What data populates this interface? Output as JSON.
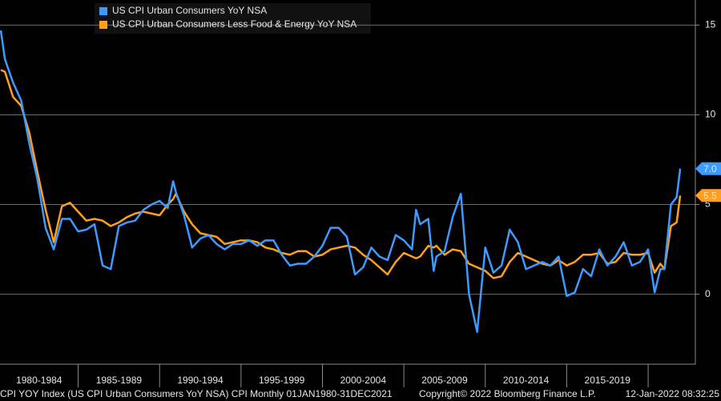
{
  "chart_data": {
    "type": "line",
    "x": [
      1980.25,
      1980.5,
      1981,
      1981.5,
      1982,
      1982.5,
      1983,
      1983.5,
      1984,
      1984.5,
      1985,
      1985.5,
      1986,
      1986.5,
      1987,
      1987.5,
      1988,
      1988.5,
      1989,
      1989.5,
      1990,
      1990.5,
      1990.83,
      1991,
      1991.5,
      1992,
      1992.5,
      1993,
      1993.5,
      1994,
      1994.5,
      1995,
      1995.5,
      1996,
      1996.5,
      1997,
      1997.5,
      1998,
      1998.5,
      1999,
      1999.5,
      2000,
      2000.5,
      2001,
      2001.5,
      2002,
      2002.5,
      2003,
      2003.5,
      2004,
      2004.5,
      2005,
      2005.5,
      2005.75,
      2006,
      2006.5,
      2006.83,
      2007,
      2007.5,
      2008,
      2008.5,
      2009,
      2009.5,
      2010,
      2010.5,
      2011,
      2011.5,
      2012,
      2012.5,
      2013,
      2013.5,
      2014,
      2014.5,
      2015,
      2015.5,
      2016,
      2016.5,
      2017,
      2017.5,
      2018,
      2018.5,
      2019,
      2019.5,
      2020,
      2020.4,
      2020.75,
      2021,
      2021.4,
      2021.75,
      2021.97
    ],
    "series": [
      {
        "name": "US CPI Urban Consumers YoY NSA",
        "color": "#3d9bff",
        "last_label": "7.0",
        "values": [
          14.7,
          13.1,
          11.8,
          10.8,
          8.4,
          6.4,
          3.7,
          2.5,
          4.2,
          4.2,
          3.5,
          3.6,
          3.9,
          1.6,
          1.4,
          3.8,
          4.0,
          4.1,
          4.7,
          5.0,
          5.2,
          4.8,
          6.3,
          5.7,
          4.4,
          2.6,
          3.1,
          3.3,
          2.8,
          2.5,
          2.8,
          2.8,
          3.0,
          2.7,
          3.0,
          3.0,
          2.2,
          1.6,
          1.7,
          1.7,
          2.1,
          2.7,
          3.7,
          3.7,
          3.2,
          1.1,
          1.5,
          2.6,
          2.1,
          1.9,
          3.3,
          3.0,
          2.5,
          4.7,
          3.9,
          4.2,
          1.3,
          2.1,
          2.4,
          4.3,
          5.6,
          0.0,
          -2.1,
          2.6,
          1.2,
          1.6,
          3.6,
          2.9,
          1.4,
          1.6,
          1.8,
          1.6,
          2.1,
          -0.1,
          0.1,
          1.4,
          1.0,
          2.5,
          1.6,
          2.1,
          2.9,
          1.6,
          1.8,
          2.5,
          0.1,
          1.4,
          1.4,
          5.0,
          5.4,
          7.0
        ]
      },
      {
        "name": "US CPI Urban Consumers Less Food & Energy YoY NSA",
        "color": "#ff9f1c",
        "last_label": "5.5",
        "values": [
          12.5,
          12.4,
          11.0,
          10.5,
          9.0,
          6.8,
          4.7,
          2.9,
          4.9,
          5.1,
          4.6,
          4.1,
          4.2,
          4.1,
          3.8,
          4.0,
          4.3,
          4.5,
          4.6,
          4.5,
          4.4,
          5.0,
          5.3,
          5.6,
          4.6,
          3.9,
          3.4,
          3.3,
          3.2,
          2.8,
          2.9,
          3.0,
          3.0,
          2.9,
          2.6,
          2.5,
          2.3,
          2.2,
          2.4,
          2.4,
          2.1,
          2.2,
          2.5,
          2.6,
          2.7,
          2.6,
          2.2,
          1.9,
          1.5,
          1.1,
          1.8,
          2.3,
          2.1,
          2.0,
          2.1,
          2.7,
          2.6,
          2.7,
          2.2,
          2.5,
          2.4,
          1.7,
          1.5,
          1.3,
          0.9,
          1.0,
          1.8,
          2.3,
          2.1,
          1.9,
          1.7,
          1.6,
          1.9,
          1.6,
          1.8,
          2.2,
          2.2,
          2.3,
          1.7,
          1.8,
          2.3,
          2.2,
          2.2,
          2.3,
          1.2,
          1.7,
          1.4,
          3.8,
          4.0,
          5.5
        ]
      }
    ],
    "categories": [
      "1980-1984",
      "1985-1989",
      "1990-1994",
      "1995-1999",
      "2000-2004",
      "2005-2009",
      "2010-2014",
      "2015-2019"
    ],
    "xticks": [
      1985,
      1990,
      1995,
      2000,
      2005,
      2010,
      2015,
      2020
    ],
    "xlim": [
      1980.2,
      2022.9
    ],
    "ylim": [
      -3.9,
      16.4
    ],
    "yticks": [
      0,
      5,
      10,
      15
    ],
    "grid": true,
    "footer": [
      "CPI YOY Index (US CPI Urban Consumers YoY NSA) CPI  Monthly 01JAN1980-31DEC2021",
      "Copyright© 2022 Bloomberg Finance L.P.",
      "12-Jan-2022 08:32:25"
    ]
  }
}
